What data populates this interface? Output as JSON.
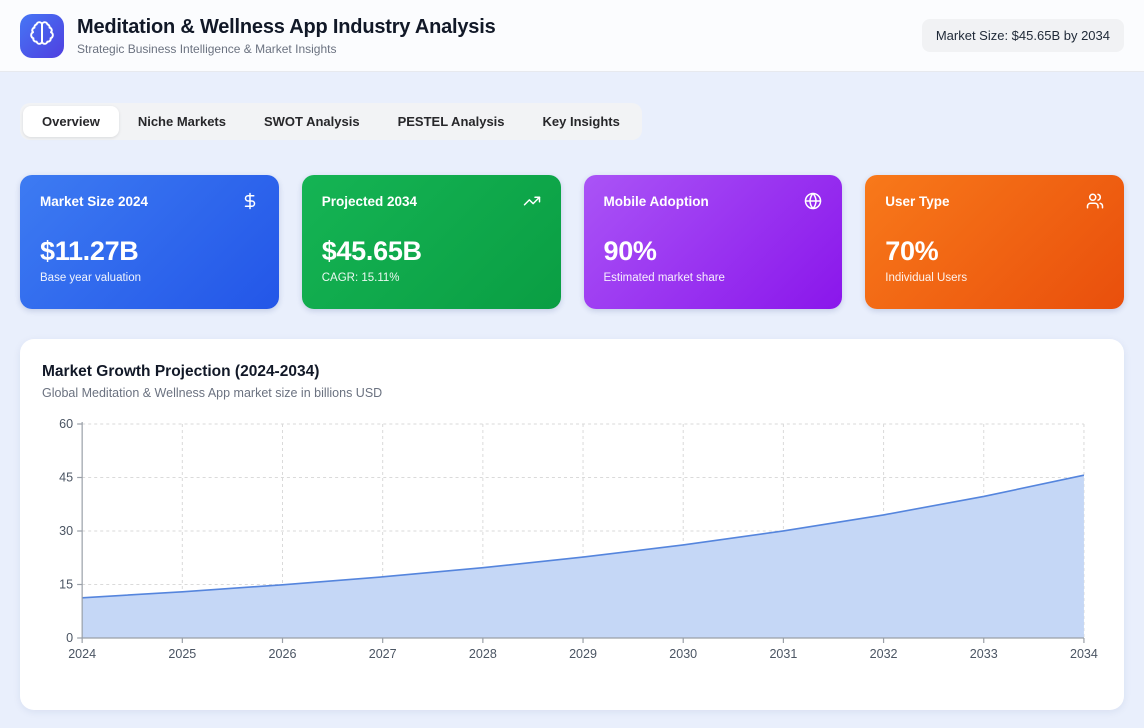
{
  "header": {
    "title": "Meditation & Wellness App Industry Analysis",
    "subtitle": "Strategic Business Intelligence & Market Insights",
    "badge": "Market Size: $45.65B by 2034",
    "logo_icon": "brain-icon",
    "logo_gradient": [
      "#4676f5",
      "#4f3fe0"
    ]
  },
  "tabs": [
    {
      "label": "Overview",
      "active": true
    },
    {
      "label": "Niche Markets",
      "active": false
    },
    {
      "label": "SWOT Analysis",
      "active": false
    },
    {
      "label": "PESTEL Analysis",
      "active": false
    },
    {
      "label": "Key Insights",
      "active": false
    }
  ],
  "stat_cards": [
    {
      "title": "Market Size 2024",
      "icon": "dollar-icon",
      "value": "$11.27B",
      "subtitle": "Base year valuation",
      "gradient": [
        "#3d7bf2",
        "#2356e8"
      ]
    },
    {
      "title": "Projected 2034",
      "icon": "trending-up-icon",
      "value": "$45.65B",
      "subtitle": "CAGR: 15.11%",
      "gradient": [
        "#15b454",
        "#0a9e43"
      ]
    },
    {
      "title": "Mobile Adoption",
      "icon": "globe-icon",
      "value": "90%",
      "subtitle": "Estimated market share",
      "gradient": [
        "#aa54f6",
        "#8a16eb"
      ]
    },
    {
      "title": "User Type",
      "icon": "users-icon",
      "value": "70%",
      "subtitle": "Individual Users",
      "gradient": [
        "#f8791a",
        "#e94f0c"
      ]
    }
  ],
  "chart_section": {
    "title": "Market Growth Projection (2024-2034)",
    "subtitle": "Global Meditation & Wellness App market size in billions USD"
  },
  "chart_data": {
    "type": "area",
    "title": "Market Growth Projection (2024-2034)",
    "x": [
      2024,
      2025,
      2026,
      2027,
      2028,
      2029,
      2030,
      2031,
      2032,
      2033,
      2034
    ],
    "values": [
      11.27,
      12.96,
      14.91,
      17.15,
      19.72,
      22.68,
      26.09,
      30.01,
      34.51,
      39.69,
      45.65
    ],
    "xlabel": "",
    "ylabel": "",
    "ylim": [
      0,
      60
    ],
    "yticks": [
      0,
      15,
      30,
      45,
      60
    ],
    "grid": true,
    "legend": "none",
    "line_color": "#5585dd",
    "fill_color": "#c5d7f6",
    "axis_color": "#9aa0a8",
    "grid_color": "#dadada",
    "tick_label_color": "#4b5563"
  }
}
